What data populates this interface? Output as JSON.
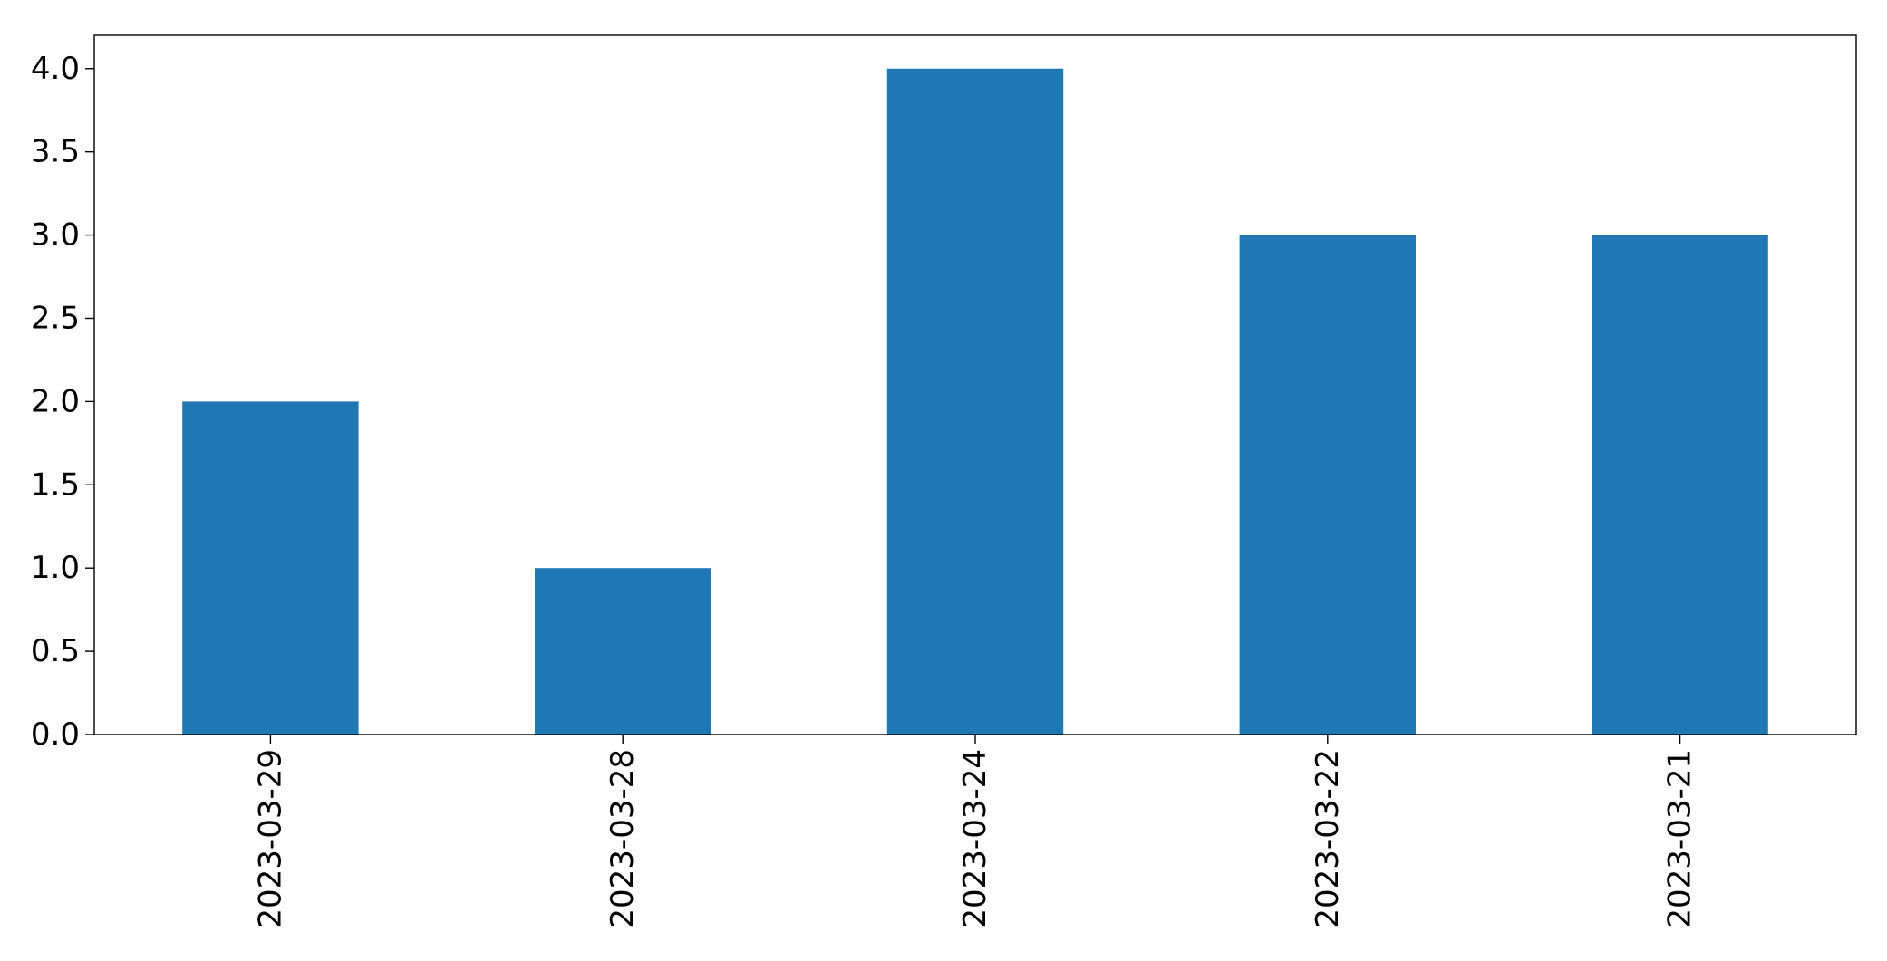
{
  "chart_data": {
    "type": "bar",
    "title": "",
    "xlabel": "",
    "ylabel": "",
    "categories": [
      "2023-03-29",
      "2023-03-28",
      "2023-03-24",
      "2023-03-22",
      "2023-03-21"
    ],
    "values": [
      2,
      1,
      4,
      3,
      3
    ],
    "ylim": [
      0,
      4.2
    ],
    "yticks": [
      "0.0",
      "0.5",
      "1.0",
      "1.5",
      "2.0",
      "2.5",
      "3.0",
      "3.5",
      "4.0"
    ],
    "ytick_values": [
      0,
      0.5,
      1,
      1.5,
      2,
      2.5,
      3,
      3.5,
      4
    ],
    "x_tick_rotation": "vertical",
    "grid": false,
    "legend": "none",
    "bar_color": "#1f77b4"
  }
}
